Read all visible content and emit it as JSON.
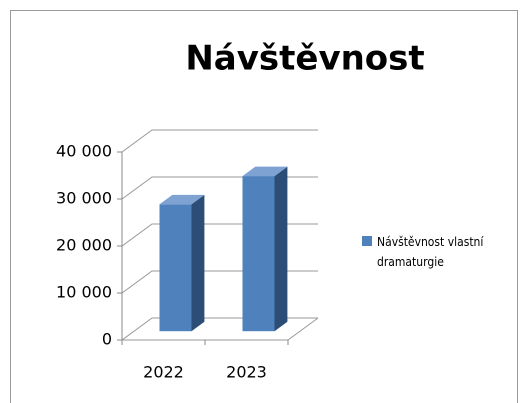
{
  "chart_data": {
    "type": "bar3d",
    "title": "Návštěvnost",
    "categories": [
      "2022",
      "2023"
    ],
    "series": [
      {
        "name": "Návštěvnost vlastní dramaturgie",
        "color": "#4f81bd",
        "values": [
          27000,
          33000
        ]
      }
    ],
    "ylim": [
      0,
      40000
    ],
    "yticks": [
      0,
      {
        "value": 10000,
        "label": "10 000"
      },
      {
        "value": 20000,
        "label": "20 000"
      },
      {
        "value": 30000,
        "label": "30 000"
      },
      {
        "value": 40000,
        "label": "40 000"
      }
    ],
    "grid": true,
    "legend": "right"
  }
}
